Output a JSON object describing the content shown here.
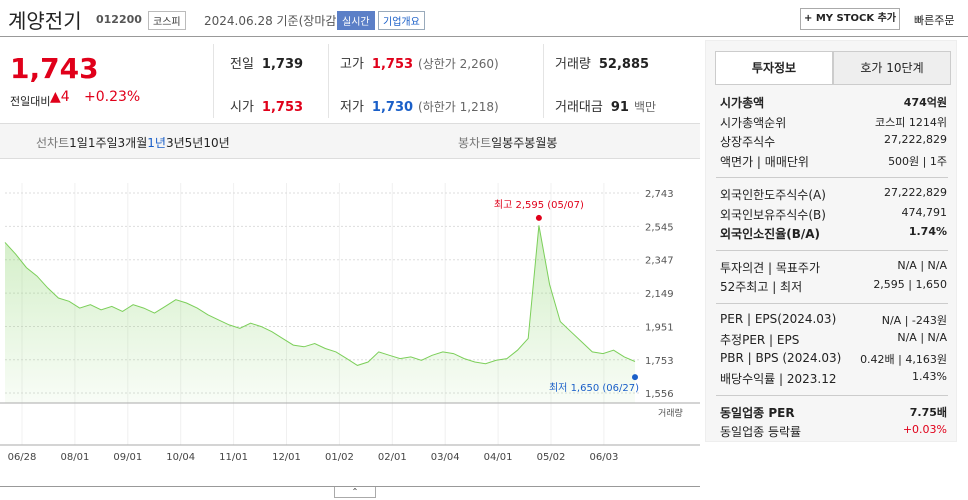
{
  "header": {
    "title": "계양전기",
    "code": "012200",
    "market": "코스피",
    "date": "2024.06.28 기준(장마감)",
    "realtime": "실시간",
    "overview": "기업개요",
    "mystock": "+ MY STOCK 추가",
    "quick_order": "빠른주문"
  },
  "price": {
    "current": "1,743",
    "change_label": "전일대비",
    "change": "▲4",
    "rate": "+0.23%"
  },
  "summary": [
    {
      "label": "전일",
      "value": "1,739"
    },
    {
      "label": "고가",
      "value": "1,753",
      "note": "(상한가 2,260)",
      "color": "#e0001a"
    },
    {
      "label": "거래량",
      "value": "52,885"
    },
    {
      "label": "시가",
      "value": "1,753",
      "color": "#e0001a"
    },
    {
      "label": "저가",
      "value": "1,730",
      "note": "(하한가 1,218)",
      "color": "#1a5fc8"
    },
    {
      "label": "거래대금",
      "value": "91",
      "note": "백만"
    }
  ],
  "chart_tabs": {
    "line_label": "선차트",
    "line": [
      "1일",
      "1주일",
      "3개월",
      "1년",
      "3년",
      "5년",
      "10년"
    ],
    "active": "1년",
    "candle_label": "봉차트",
    "candle": [
      "일봉",
      "주봉",
      "월봉"
    ]
  },
  "chart": {
    "type": "line",
    "color": "#7ccf5a",
    "ylim": [
      1556,
      2743
    ],
    "yticks": [
      {
        "value": 2743,
        "label": "2,743"
      },
      {
        "value": 2545,
        "label": "2,545"
      },
      {
        "value": 2347,
        "label": "2,347"
      },
      {
        "value": 2149,
        "label": "2,149"
      },
      {
        "value": 1951,
        "label": "1,951"
      },
      {
        "value": 1753,
        "label": "1,753"
      },
      {
        "value": 1556,
        "label": "1,556"
      }
    ],
    "xlabels": [
      "06/28",
      "08/01",
      "09/01",
      "10/04",
      "11/01",
      "12/01",
      "01/02",
      "02/01",
      "03/04",
      "04/01",
      "05/02",
      "06/03"
    ],
    "values": [
      2450,
      2380,
      2300,
      2250,
      2180,
      2120,
      2100,
      2060,
      2080,
      2050,
      2070,
      2040,
      2080,
      2060,
      2030,
      2070,
      2110,
      2090,
      2060,
      2020,
      1990,
      1960,
      1940,
      1970,
      1950,
      1920,
      1880,
      1840,
      1830,
      1850,
      1820,
      1800,
      1760,
      1720,
      1740,
      1800,
      1780,
      1760,
      1770,
      1750,
      1780,
      1800,
      1790,
      1760,
      1740,
      1730,
      1750,
      1760,
      1810,
      1880,
      2551,
      2200,
      1980,
      1920,
      1860,
      1800,
      1790,
      1810,
      1770,
      1743
    ],
    "high": {
      "value": 2595,
      "label": "최고 2,595 (05/07)"
    },
    "low": {
      "value": 1650,
      "label": "최저 1,650 (06/27)"
    },
    "volume_label": "거래량"
  },
  "invest_tabs": [
    "투자정보",
    "호가 10단계"
  ],
  "invest": [
    [
      {
        "label": "시가총액",
        "value": "474억원",
        "bold": true
      },
      {
        "label": "시가총액순위",
        "value": "코스피 1214위"
      },
      {
        "label": "상장주식수",
        "value": "27,222,829"
      },
      {
        "label": "액면가 | 매매단위",
        "value": "500원 | 1주"
      }
    ],
    [
      {
        "label": "외국인한도주식수(A)",
        "value": "27,222,829"
      },
      {
        "label": "외국인보유주식수(B)",
        "value": "474,791"
      },
      {
        "label": "외국인소진율(B/A)",
        "value": "1.74%",
        "bold": true
      }
    ],
    [
      {
        "label": "투자의견 | 목표주가",
        "value": "N/A | N/A"
      },
      {
        "label": "52주최고 | 최저",
        "value": "2,595 | 1,650"
      }
    ],
    [
      {
        "label": "PER | EPS(2024.03)",
        "value": "N/A | -243원"
      },
      {
        "label": "추정PER | EPS",
        "value": "N/A | N/A"
      },
      {
        "label": "PBR | BPS (2024.03)",
        "value": "0.42배 | 4,163원"
      },
      {
        "label": "배당수익률 | 2023.12",
        "value": "1.43%"
      }
    ],
    [
      {
        "label": "동일업종 PER",
        "value": "7.75배",
        "bold": true
      },
      {
        "label": "동일업종 등락률",
        "value": "+0.03%",
        "color": "#e0001a"
      }
    ]
  ]
}
